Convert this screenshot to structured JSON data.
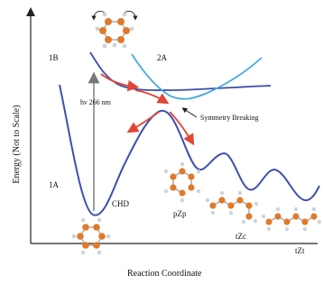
{
  "axes": {
    "ylabel": "Energy (Not to Scale)",
    "xlabel": "Reaction Coordinate"
  },
  "states": {
    "ground": "1A",
    "excited_1b": "1B",
    "excited_2a": "2A"
  },
  "annotations": {
    "excitation": "hν 266 nm",
    "symmetry": "Symmetry Breaking"
  },
  "species": {
    "chd": "CHD",
    "pzp": "pZp",
    "tzc": "tZc",
    "tzt": "tZt"
  },
  "colors": {
    "ground_curve": "#3f4fb0",
    "excited_1b_curve": "#3a4ea8",
    "excited_2a_curve": "#47a9e0",
    "arrows": "#e04535",
    "carbon_atom": "#e07a2a",
    "hydrogen_atom": "#cfd3d8"
  }
}
